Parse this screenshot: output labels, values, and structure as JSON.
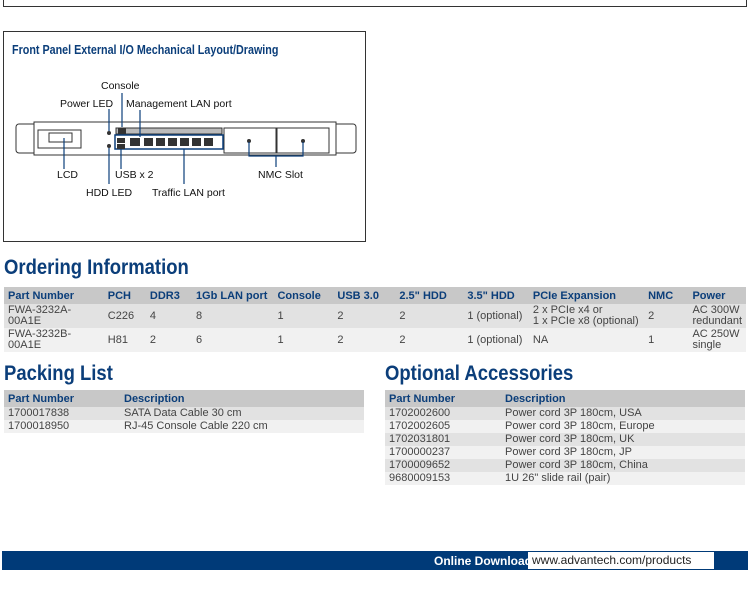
{
  "front_panel": {
    "title": "Front Panel External I/O Mechanical Layout/Drawing",
    "labels": {
      "console": "Console",
      "power_led": "Power LED",
      "mgmt_lan": "Management LAN port",
      "lcd": "LCD",
      "usb": "USB x 2",
      "nmc": "NMC Slot",
      "hdd_led": "HDD LED",
      "traffic_lan": "Traffic LAN port"
    }
  },
  "ordering": {
    "title": "Ordering Information",
    "headers": [
      "Part Number",
      "PCH",
      "DDR3",
      "1Gb LAN port",
      "Console",
      "USB 3.0",
      "2.5\" HDD",
      "3.5\" HDD",
      "PCIe Expansion",
      "NMC",
      "Power"
    ],
    "rows": [
      [
        "FWA-3232A-00A1E",
        "C226",
        "4",
        "8",
        "1",
        "2",
        "2",
        "1 (optional)",
        "2 x PCIe x4 or\n1 x PCIe x8 (optional)",
        "2",
        "AC 300W\nredundant"
      ],
      [
        "FWA-3232B-00A1E",
        "H81",
        "2",
        "6",
        "1",
        "2",
        "2",
        "1 (optional)",
        "NA",
        "1",
        "AC 250W single"
      ]
    ]
  },
  "packing": {
    "title": "Packing List",
    "headers": [
      "Part Number",
      "Description"
    ],
    "rows": [
      [
        "1700017838",
        "SATA Data Cable 30 cm"
      ],
      [
        "1700018950",
        "RJ-45 Console Cable 220 cm"
      ]
    ]
  },
  "accessories": {
    "title": "Optional Accessories",
    "headers": [
      "Part Number",
      "Description"
    ],
    "rows": [
      [
        "1702002600",
        "Power cord 3P 180cm, USA"
      ],
      [
        "1702002605",
        "Power cord 3P 180cm, Europe"
      ],
      [
        "1702031801",
        "Power cord 3P 180cm, UK"
      ],
      [
        "1700000237",
        "Power cord 3P 180cm, JP"
      ],
      [
        "1700009652",
        "Power cord 3P 180cm, China"
      ],
      [
        "9680009153",
        "1U 26\" slide rail (pair)"
      ]
    ]
  },
  "footer": {
    "label": "Online Download",
    "url": "www.advantech.com/products"
  },
  "colors": {
    "brand": "#0b3e7a",
    "footer": "#003a78"
  }
}
